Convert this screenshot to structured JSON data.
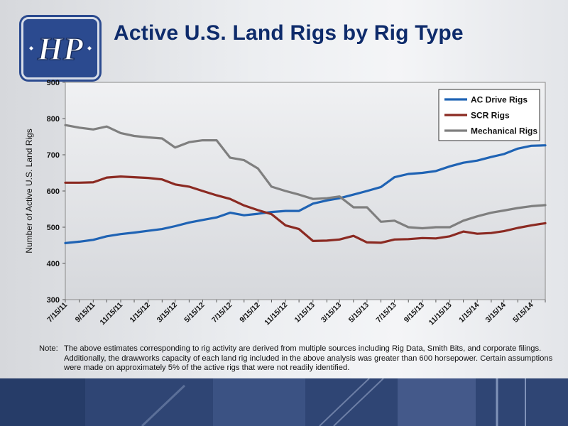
{
  "header": {
    "title": "Active U.S. Land Rigs by Rig Type",
    "logo_text": "HP"
  },
  "note": {
    "label": "Note:",
    "text": "The above estimates corresponding to rig activity are derived from multiple sources including Rig Data, Smith Bits, and corporate filings.  Additionally, the drawworks capacity of each land rig included in the above analysis was greater than 600 horsepower.  Certain assumptions were made on approximately 5% of the active rigs that were not readily identified."
  },
  "colors": {
    "ac": "#1f63b4",
    "scr": "#8b2a22",
    "mech": "#7f7f7f",
    "title": "#0e2b6b"
  },
  "chart_data": {
    "type": "line",
    "title": "",
    "xlabel": "",
    "ylabel": "Number of Active U.S. Land Rigs",
    "ylim": [
      300,
      900
    ],
    "yticks": [
      300,
      400,
      500,
      600,
      700,
      800,
      900
    ],
    "grid": false,
    "legend_position": "top-right",
    "x_tick_labels": [
      "7/15/11",
      "9/15/11",
      "11/15/11",
      "1/15/12",
      "3/15/12",
      "5/15/12",
      "7/15/12",
      "9/15/12",
      "11/15/12",
      "1/15/13",
      "3/15/13",
      "5/15/13",
      "7/15/13",
      "9/15/13",
      "11/15/13",
      "1/15/14",
      "3/15/14",
      "5/15/14"
    ],
    "x_range": [
      "2011-07-15",
      "2014-06-15"
    ],
    "series": [
      {
        "name": "AC Drive Rigs",
        "color": "#1f63b4",
        "points": [
          [
            "2011-07-15",
            456
          ],
          [
            "2011-08-15",
            460
          ],
          [
            "2011-09-15",
            465
          ],
          [
            "2011-10-15",
            475
          ],
          [
            "2011-11-15",
            481
          ],
          [
            "2011-12-15",
            485
          ],
          [
            "2012-01-15",
            490
          ],
          [
            "2012-02-15",
            495
          ],
          [
            "2012-03-15",
            503
          ],
          [
            "2012-04-15",
            513
          ],
          [
            "2012-05-15",
            520
          ],
          [
            "2012-06-15",
            527
          ],
          [
            "2012-07-15",
            540
          ],
          [
            "2012-08-15",
            533
          ],
          [
            "2012-09-15",
            537
          ],
          [
            "2012-10-15",
            542
          ],
          [
            "2012-11-15",
            545
          ],
          [
            "2012-12-15",
            545
          ],
          [
            "2013-01-15",
            565
          ],
          [
            "2013-02-15",
            574
          ],
          [
            "2013-03-15",
            580
          ],
          [
            "2013-04-15",
            590
          ],
          [
            "2013-05-15",
            600
          ],
          [
            "2013-06-15",
            611
          ],
          [
            "2013-07-15",
            638
          ],
          [
            "2013-08-15",
            647
          ],
          [
            "2013-09-15",
            650
          ],
          [
            "2013-10-15",
            655
          ],
          [
            "2013-11-15",
            668
          ],
          [
            "2013-12-15",
            678
          ],
          [
            "2014-01-15",
            684
          ],
          [
            "2014-02-15",
            694
          ],
          [
            "2014-03-15",
            702
          ],
          [
            "2014-04-15",
            717
          ],
          [
            "2014-05-15",
            725
          ],
          [
            "2014-06-15",
            726
          ]
        ]
      },
      {
        "name": "SCR Rigs",
        "color": "#8b2a22",
        "points": [
          [
            "2011-07-15",
            623
          ],
          [
            "2011-08-15",
            623
          ],
          [
            "2011-09-15",
            624
          ],
          [
            "2011-10-15",
            637
          ],
          [
            "2011-11-15",
            640
          ],
          [
            "2011-12-15",
            638
          ],
          [
            "2012-01-15",
            636
          ],
          [
            "2012-02-15",
            632
          ],
          [
            "2012-03-15",
            618
          ],
          [
            "2012-04-15",
            612
          ],
          [
            "2012-05-15",
            600
          ],
          [
            "2012-06-15",
            588
          ],
          [
            "2012-07-15",
            578
          ],
          [
            "2012-08-15",
            560
          ],
          [
            "2012-09-15",
            547
          ],
          [
            "2012-10-15",
            536
          ],
          [
            "2012-11-15",
            505
          ],
          [
            "2012-12-15",
            495
          ],
          [
            "2013-01-15",
            462
          ],
          [
            "2013-02-15",
            463
          ],
          [
            "2013-03-15",
            466
          ],
          [
            "2013-04-15",
            476
          ],
          [
            "2013-05-15",
            458
          ],
          [
            "2013-06-15",
            457
          ],
          [
            "2013-07-15",
            466
          ],
          [
            "2013-08-15",
            467
          ],
          [
            "2013-09-15",
            470
          ],
          [
            "2013-10-15",
            469
          ],
          [
            "2013-11-15",
            475
          ],
          [
            "2013-12-15",
            488
          ],
          [
            "2014-01-15",
            482
          ],
          [
            "2014-02-15",
            484
          ],
          [
            "2014-03-15",
            489
          ],
          [
            "2014-04-15",
            498
          ],
          [
            "2014-05-15",
            505
          ],
          [
            "2014-06-15",
            511
          ]
        ]
      },
      {
        "name": "Mechanical Rigs",
        "color": "#7f7f7f",
        "points": [
          [
            "2011-07-15",
            782
          ],
          [
            "2011-08-15",
            775
          ],
          [
            "2011-09-15",
            770
          ],
          [
            "2011-10-15",
            778
          ],
          [
            "2011-11-15",
            760
          ],
          [
            "2011-12-15",
            752
          ],
          [
            "2012-01-15",
            748
          ],
          [
            "2012-02-15",
            745
          ],
          [
            "2012-03-15",
            720
          ],
          [
            "2012-04-15",
            735
          ],
          [
            "2012-05-15",
            740
          ],
          [
            "2012-06-15",
            740
          ],
          [
            "2012-07-15",
            692
          ],
          [
            "2012-08-15",
            685
          ],
          [
            "2012-09-15",
            662
          ],
          [
            "2012-10-15",
            612
          ],
          [
            "2012-11-15",
            600
          ],
          [
            "2012-12-15",
            590
          ],
          [
            "2013-01-15",
            578
          ],
          [
            "2013-02-15",
            580
          ],
          [
            "2013-03-15",
            585
          ],
          [
            "2013-04-15",
            555
          ],
          [
            "2013-05-15",
            555
          ],
          [
            "2013-06-15",
            515
          ],
          [
            "2013-07-15",
            518
          ],
          [
            "2013-08-15",
            500
          ],
          [
            "2013-09-15",
            497
          ],
          [
            "2013-10-15",
            500
          ],
          [
            "2013-11-15",
            500
          ],
          [
            "2013-12-15",
            518
          ],
          [
            "2014-01-15",
            530
          ],
          [
            "2014-02-15",
            540
          ],
          [
            "2014-03-15",
            546
          ],
          [
            "2014-04-15",
            553
          ],
          [
            "2014-05-15",
            558
          ],
          [
            "2014-06-15",
            561
          ]
        ]
      }
    ]
  }
}
